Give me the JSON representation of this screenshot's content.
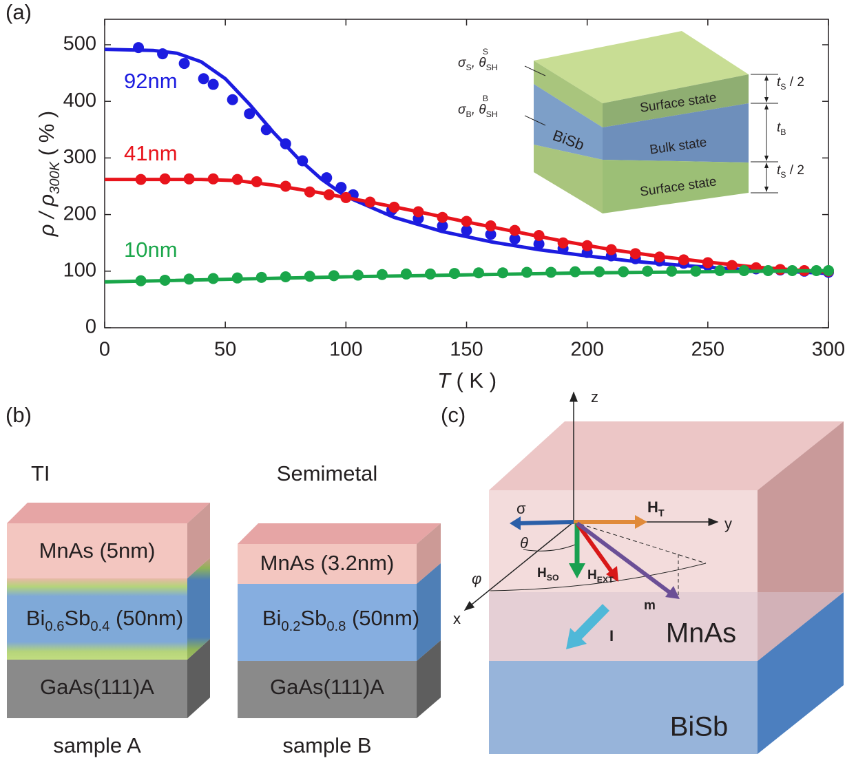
{
  "chart_data": {
    "type": "scatter",
    "panel_label": "(a)",
    "ylabel": [
      "ρ / ρ",
      "300K",
      " ( % )"
    ],
    "xlabel": [
      "T",
      " ( K )"
    ],
    "xlim": [
      0,
      300
    ],
    "xticks": [
      0,
      50,
      100,
      150,
      200,
      250,
      300
    ],
    "ylim": [
      0,
      545
    ],
    "yticks": [
      0,
      100,
      200,
      300,
      400,
      500
    ],
    "series": [
      {
        "name": "92nm",
        "color": "#1c1ce0",
        "x": [
          14,
          24,
          33,
          41,
          45,
          53,
          60,
          67,
          75,
          82,
          92,
          98,
          103,
          119,
          130,
          140,
          150,
          160,
          170,
          180,
          190,
          200,
          210,
          220,
          230,
          240,
          250,
          260,
          270,
          280,
          290,
          300
        ],
        "values": [
          495,
          484,
          467,
          440,
          430,
          403,
          378,
          350,
          325,
          295,
          265,
          248,
          235,
          208,
          193,
          180,
          172,
          165,
          157,
          148,
          140,
          133,
          127,
          122,
          118,
          114,
          110,
          107,
          104,
          102,
          100,
          98
        ],
        "fit": {
          "x": [
            0,
            20,
            30,
            40,
            50,
            60,
            70,
            80,
            90,
            100,
            120,
            140,
            160,
            180,
            200,
            220,
            240,
            260,
            280,
            300
          ],
          "values": [
            492,
            490,
            485,
            470,
            440,
            395,
            345,
            300,
            262,
            232,
            195,
            170,
            152,
            138,
            127,
            117,
            110,
            104,
            100,
            96
          ]
        }
      },
      {
        "name": "41nm",
        "color": "#e8141c",
        "x": [
          15,
          25,
          35,
          45,
          55,
          63,
          75,
          85,
          93,
          100,
          110,
          120,
          130,
          140,
          150,
          160,
          170,
          180,
          190,
          200,
          210,
          220,
          230,
          240,
          250,
          260,
          270,
          280,
          290,
          300
        ],
        "values": [
          262,
          263,
          263,
          263,
          262,
          258,
          250,
          240,
          235,
          230,
          222,
          213,
          205,
          195,
          188,
          180,
          172,
          163,
          150,
          145,
          138,
          131,
          125,
          120,
          115,
          110,
          106,
          103,
          101,
          100
        ],
        "fit": {
          "x": [
            0,
            40,
            55,
            70,
            90,
            110,
            130,
            150,
            170,
            190,
            210,
            230,
            250,
            270,
            290,
            300
          ],
          "values": [
            262,
            262,
            260,
            252,
            238,
            222,
            205,
            187,
            170,
            153,
            138,
            126,
            116,
            107,
            101,
            98
          ]
        }
      },
      {
        "name": "10nm",
        "color": "#1aa64a",
        "x": [
          15,
          25,
          35,
          45,
          55,
          65,
          75,
          85,
          95,
          105,
          115,
          125,
          135,
          145,
          155,
          165,
          175,
          185,
          195,
          205,
          215,
          225,
          235,
          245,
          255,
          265,
          275,
          285,
          295,
          300
        ],
        "values": [
          83,
          84,
          86,
          87,
          88,
          89,
          90,
          91,
          92,
          93,
          94,
          95,
          95,
          96,
          97,
          97,
          98,
          98,
          99,
          99,
          99,
          100,
          100,
          100,
          101,
          101,
          101,
          101,
          101,
          101
        ],
        "fit": {
          "x": [
            0,
            100,
            200,
            300
          ],
          "values": [
            81,
            90,
            97,
            101
          ]
        }
      }
    ]
  },
  "panel_a_inset": {
    "surface_label": [
      "σ",
      "S",
      ", θ",
      "SH",
      "S"
    ],
    "bulk_label": [
      "σ",
      "B",
      ", θ",
      "SH",
      "B"
    ],
    "material": "BiSb",
    "layers": [
      "Surface state",
      "Bulk state",
      "Surface state"
    ],
    "thickness": [
      [
        "t",
        "S",
        " / 2"
      ],
      [
        "t",
        "B"
      ],
      [
        "t",
        "S",
        " / 2"
      ]
    ]
  },
  "panel_b": {
    "label": "(b)",
    "samples": [
      {
        "type": "TI",
        "layers": [
          [
            "MnAs (5nm)"
          ],
          [
            "Bi",
            "0.6",
            "Sb",
            "0.4",
            " (50nm)"
          ],
          [
            "GaAs(111)A"
          ]
        ],
        "name": "sample A"
      },
      {
        "type": "Semimetal",
        "layers": [
          [
            "MnAs (3.2nm)"
          ],
          [
            "Bi",
            "0.2",
            "Sb",
            "0.8",
            " (50nm)"
          ],
          [
            "GaAs(111)A"
          ]
        ],
        "name": "sample B"
      }
    ]
  },
  "panel_c": {
    "label": "(c)",
    "axes": [
      "x",
      "y",
      "z"
    ],
    "vectors": {
      "sigma": "σ",
      "h_t": [
        "H",
        "T"
      ],
      "h_so": [
        "H",
        "SO"
      ],
      "h_ext": [
        "H",
        "EXT"
      ],
      "m": "m",
      "current": "I"
    },
    "angles": [
      "θ",
      "φ"
    ],
    "layers": [
      "MnAs",
      "BiSb"
    ]
  }
}
